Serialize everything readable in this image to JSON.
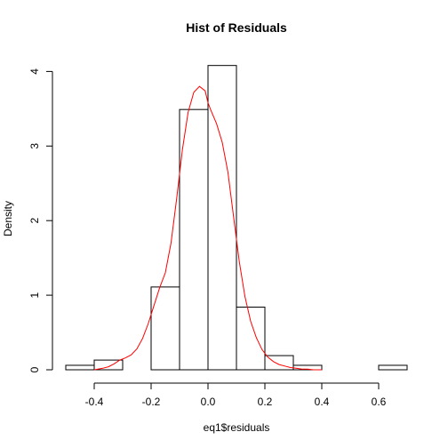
{
  "chart_data": {
    "type": "bar",
    "title": "Hist of Residuals",
    "xlabel": "eq1$residuals",
    "ylabel": "Density",
    "xlim": [
      -0.5,
      0.7
    ],
    "ylim": [
      0,
      4.1
    ],
    "x_ticks": [
      -0.4,
      -0.2,
      0.0,
      0.2,
      0.4,
      0.6
    ],
    "x_tick_labels": [
      "-0.4",
      "-0.2",
      "0.0",
      "0.2",
      "0.4",
      "0.6"
    ],
    "y_ticks": [
      0,
      1,
      2,
      3,
      4
    ],
    "y_tick_labels": [
      "0",
      "1",
      "2",
      "3",
      "4"
    ],
    "grid": false,
    "series": [
      {
        "kind": "histogram",
        "bins": [
          {
            "from": -0.5,
            "to": -0.4,
            "density": 0.06
          },
          {
            "from": -0.4,
            "to": -0.3,
            "density": 0.13
          },
          {
            "from": -0.3,
            "to": -0.2,
            "density": 0.0
          },
          {
            "from": -0.2,
            "to": -0.1,
            "density": 1.11
          },
          {
            "from": -0.1,
            "to": 0.0,
            "density": 3.49
          },
          {
            "from": 0.0,
            "to": 0.1,
            "density": 4.08
          },
          {
            "from": 0.1,
            "to": 0.2,
            "density": 0.84
          },
          {
            "from": 0.2,
            "to": 0.3,
            "density": 0.19
          },
          {
            "from": 0.3,
            "to": 0.4,
            "density": 0.06
          },
          {
            "from": 0.4,
            "to": 0.5,
            "density": 0.0
          },
          {
            "from": 0.5,
            "to": 0.6,
            "density": 0.0
          },
          {
            "from": 0.6,
            "to": 0.7,
            "density": 0.06
          }
        ],
        "color": "#000000",
        "fill": "#ffffff"
      },
      {
        "kind": "density-line",
        "color": "#ff0000",
        "x": [
          -0.4,
          -0.37,
          -0.35,
          -0.33,
          -0.31,
          -0.29,
          -0.27,
          -0.25,
          -0.23,
          -0.21,
          -0.19,
          -0.17,
          -0.15,
          -0.13,
          -0.11,
          -0.09,
          -0.07,
          -0.05,
          -0.03,
          -0.01,
          0.0,
          0.01,
          0.03,
          0.05,
          0.07,
          0.09,
          0.11,
          0.13,
          0.15,
          0.17,
          0.19,
          0.21,
          0.23,
          0.25,
          0.27,
          0.29,
          0.31,
          0.33,
          0.35,
          0.37,
          0.4
        ],
        "y": [
          0.0,
          0.02,
          0.04,
          0.08,
          0.13,
          0.16,
          0.2,
          0.28,
          0.42,
          0.62,
          0.86,
          1.1,
          1.3,
          1.7,
          2.3,
          2.95,
          3.45,
          3.72,
          3.8,
          3.74,
          3.58,
          3.48,
          3.3,
          3.05,
          2.65,
          2.05,
          1.45,
          0.98,
          0.65,
          0.43,
          0.27,
          0.17,
          0.11,
          0.07,
          0.05,
          0.03,
          0.02,
          0.01,
          0.01,
          0.0,
          0.0
        ]
      }
    ]
  }
}
